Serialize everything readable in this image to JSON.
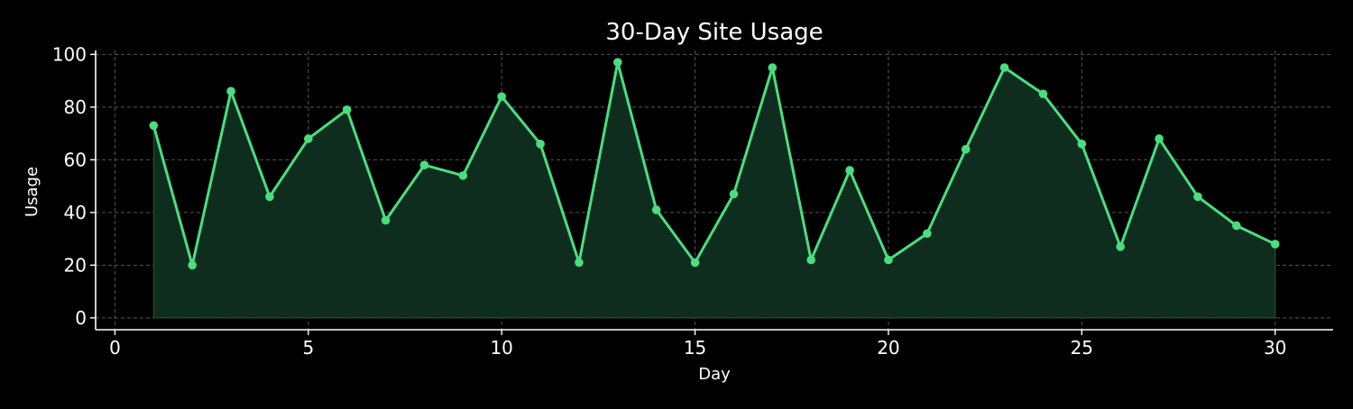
{
  "chart_data": {
    "type": "area",
    "title": "30-Day Site Usage",
    "xlabel": "Day",
    "ylabel": "Usage",
    "x": [
      1,
      2,
      3,
      4,
      5,
      6,
      7,
      8,
      9,
      10,
      11,
      12,
      13,
      14,
      15,
      16,
      17,
      18,
      19,
      20,
      21,
      22,
      23,
      24,
      25,
      26,
      27,
      28,
      29,
      30
    ],
    "series": [
      {
        "values": [
          73,
          20,
          86,
          46,
          68,
          79,
          37,
          58,
          54,
          84,
          66,
          21,
          97,
          41,
          21,
          47,
          95,
          22,
          56,
          22,
          32,
          64,
          95,
          85,
          66,
          27,
          68,
          46,
          35,
          28
        ]
      }
    ],
    "xlim": [
      -0.5,
      31.5
    ],
    "ylim": [
      -4.5,
      101.5
    ],
    "xticks": [
      0,
      5,
      10,
      15,
      20,
      25,
      30
    ],
    "yticks": [
      0,
      20,
      40,
      60,
      80,
      100
    ],
    "grid": true,
    "colors": {
      "background": "#000000",
      "line": "#4ade80",
      "fill": "#0f2d1e",
      "grid": "#555555",
      "text": "#ffffff"
    }
  }
}
